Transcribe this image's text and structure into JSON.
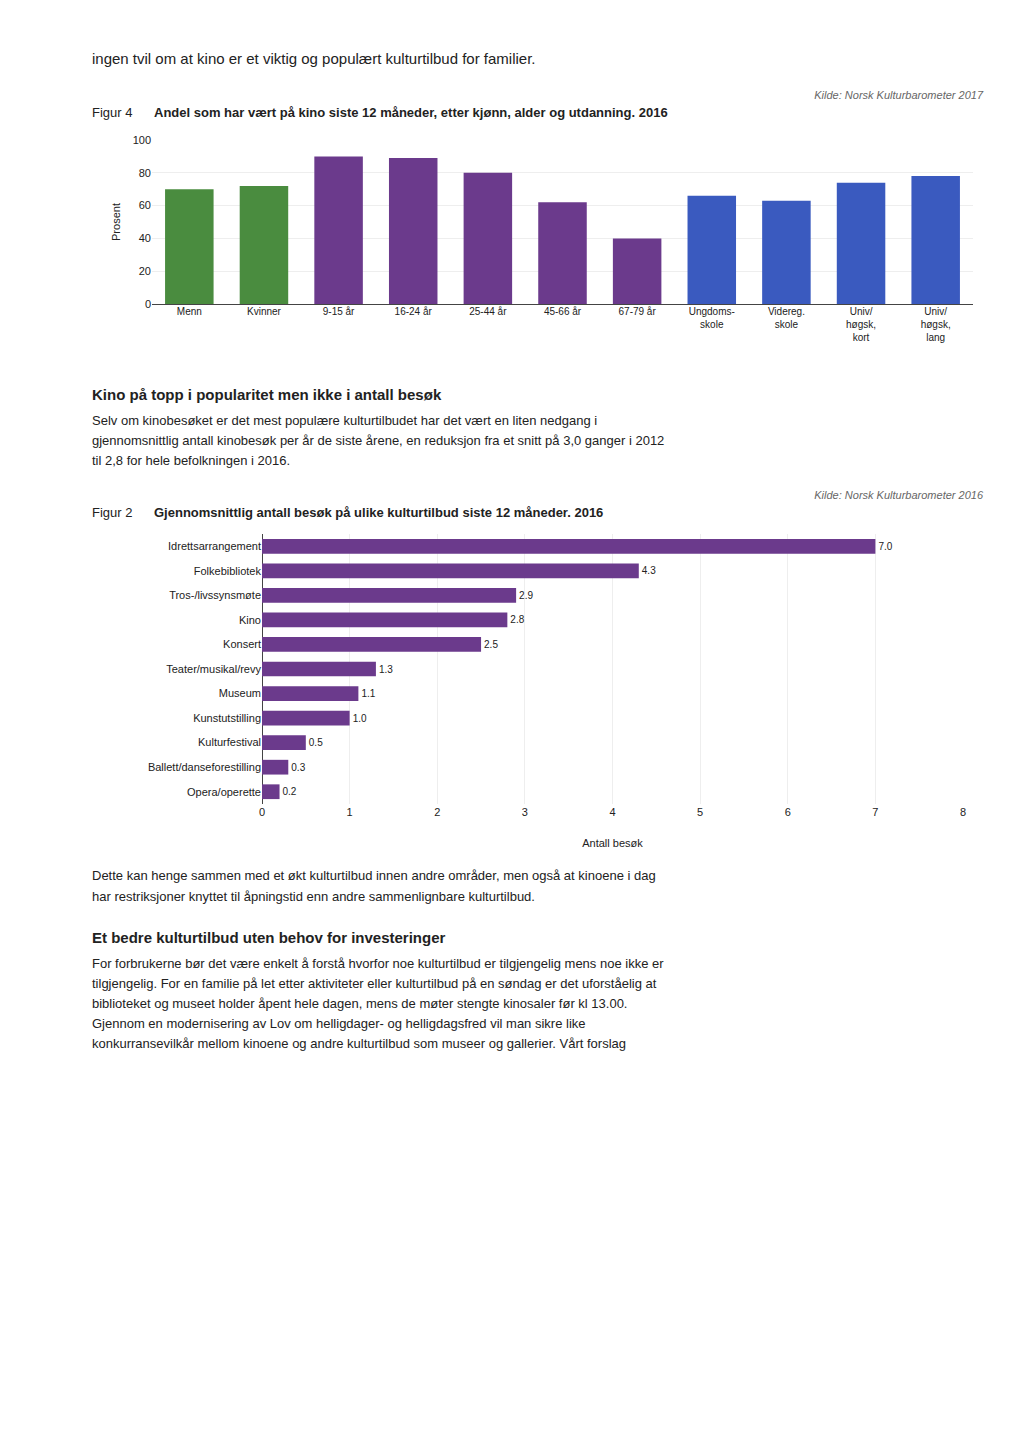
{
  "chart_data": [
    {
      "type": "bar",
      "title": "Andel som har vært på kino siste 12 måneder, etter kjønn, alder og utdanning. 2016",
      "annotations": [
        "ingen tvil om at kino er et viktig og populært kulturtilbud for familier.",
        "Kilde: Norsk Kulturbarometer 2017",
        "Figur 4"
      ],
      "ylabel": "Prosent",
      "categories": [
        "Menn",
        "Kvinner",
        "9-15 år",
        "16-24 år",
        "25-44 år",
        "45-66 år",
        "67-79 år",
        "Ungdoms-\nskole",
        "Videreg.\nskole",
        "Univ/\nhøgsk,\nkort",
        "Univ/\nhøgsk,\nlang"
      ],
      "values": [
        70,
        72,
        90,
        89,
        80,
        62,
        40,
        66,
        63,
        74,
        78
      ],
      "colors": [
        "#4a8c3f",
        "#4a8c3f",
        "#6b3a8c",
        "#6b3a8c",
        "#6b3a8c",
        "#6b3a8c",
        "#6b3a8c",
        "#3a5abf",
        "#3a5abf",
        "#3a5abf",
        "#3a5abf"
      ],
      "ylim": [
        0,
        100
      ],
      "yticks": [
        0,
        20,
        40,
        60,
        80,
        100
      ],
      "grid": true
    },
    {
      "type": "bar",
      "title": "Gjennomsnittlig antall besøk på ulike kulturtilbud siste 12 måneder. 2016",
      "annotations": [
        "Kino på topp i popularitet men ikke i antall besøk",
        "Selv om kinobesøket er det mest populære kulturtilbudet har det vært en liten nedgang i\ngjennomsnittlig antall kinobesøk per år de siste årene, en reduksjon fra et snitt på 3,0 ganger i 2012\ntil 2,8 for hele befolkningen i 2016.",
        "Kilde: Norsk Kulturbarometer 2016",
        "Figur 2",
        "Dette kan henge sammen med et økt kulturtilbud innen andre områder, men også at kinoene i dag\nhar restriksjoner knyttet til åpningstid enn andre sammenlignbare kulturtilbud.",
        "Et bedre kulturtilbud uten behov for investeringer",
        "For forbrukerne bør det være enkelt å forstå hvorfor noe kulturtilbud er tilgjengelig mens noe ikke er\ntilgjengelig. For en familie på let etter aktiviteter eller kulturtilbud på en søndag er det uforståelig at\nbiblioteket og museet holder åpent hele dagen, mens de møter stengte kinosaler før kl 13.00.\nGjennom en modernisering av Lov om helligdager- og helligdagsfred vil man sikre like\nkonkurransevilkår mellom kinoene og andre kulturtilbud som museer og gallerier. Vårt forslag"
      ],
      "xlabel": "Antall besøk",
      "orientation": "horizontal",
      "categories": [
        "Idrettsarrangement",
        "Folkebibliotek",
        "Tros-/livssynsmøte",
        "Kino",
        "Konsert",
        "Teater/musikal/revy",
        "Museum",
        "Kunstutstilling",
        "Kulturfestival",
        "Ballett/danseforestilling",
        "Opera/operette"
      ],
      "values": [
        7.0,
        4.3,
        2.9,
        2.8,
        2.5,
        1.3,
        1.1,
        1.0,
        0.5,
        0.3,
        0.2
      ],
      "value_labels": [
        "7.0",
        "4.3",
        "2.9",
        "2.8",
        "2.5",
        "1.3",
        "1.1",
        "1.0",
        "0.5",
        "0.3",
        "0.2"
      ],
      "data_labels": true,
      "color": "#6b3a8c",
      "xlim": [
        0,
        8
      ],
      "xticks": [
        0,
        1,
        2,
        3,
        4,
        5,
        6,
        7,
        8
      ],
      "grid": true
    }
  ]
}
